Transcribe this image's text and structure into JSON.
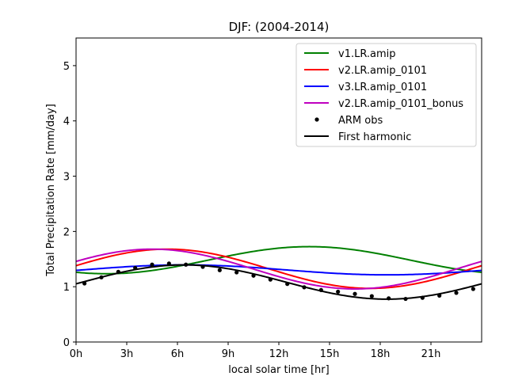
{
  "chart_data": {
    "type": "line",
    "title": "DJF: (2004-2014)",
    "xlabel": "local solar time [hr]",
    "ylabel": "Total Precipitation Rate [mm/day]",
    "xlim": [
      0,
      24
    ],
    "ylim": [
      0,
      5.5
    ],
    "xticks": [
      0,
      3,
      6,
      9,
      12,
      15,
      18,
      21
    ],
    "xtick_labels": [
      "0h",
      "3h",
      "6h",
      "9h",
      "12h",
      "15h",
      "18h",
      "21h"
    ],
    "yticks": [
      0,
      1,
      2,
      3,
      4,
      5
    ],
    "ytick_labels": [
      "0",
      "1",
      "2",
      "3",
      "4",
      "5"
    ],
    "grid": false,
    "legend_position": "top-right",
    "series": [
      {
        "name": "v1.LR.amip",
        "kind": "harmonic",
        "color": "#008000",
        "mean": 1.48,
        "amplitude": 0.245,
        "peak_hour": 13.8
      },
      {
        "name": "v2.LR.amip_0101",
        "kind": "harmonic",
        "color": "#ff0000",
        "mean": 1.325,
        "amplitude": 0.355,
        "peak_hour": 5.4
      },
      {
        "name": "v3.LR.amip_0101",
        "kind": "harmonic",
        "color": "#0000ff",
        "mean": 1.305,
        "amplitude": 0.09,
        "peak_hour": 6.4
      },
      {
        "name": "v2.LR.amip_0101_bonus",
        "kind": "harmonic",
        "color": "#bf00bf",
        "mean": 1.32,
        "amplitude": 0.36,
        "peak_hour": 4.5
      },
      {
        "name": "ARM obs",
        "kind": "points",
        "color": "#000000",
        "x": [
          0.5,
          1.5,
          2.5,
          3.5,
          4.5,
          5.5,
          6.5,
          7.5,
          8.5,
          9.5,
          10.5,
          11.5,
          12.5,
          13.5,
          14.5,
          15.5,
          16.5,
          17.5,
          18.5,
          19.5,
          20.5,
          21.5,
          22.5,
          23.5
        ],
        "y": [
          1.06,
          1.17,
          1.27,
          1.34,
          1.4,
          1.42,
          1.4,
          1.36,
          1.3,
          1.26,
          1.2,
          1.13,
          1.05,
          0.99,
          0.94,
          0.91,
          0.87,
          0.83,
          0.79,
          0.78,
          0.8,
          0.84,
          0.89,
          0.96
        ]
      },
      {
        "name": "First harmonic",
        "kind": "harmonic",
        "color": "#000000",
        "mean": 1.085,
        "amplitude": 0.31,
        "peak_hour": 6.4
      }
    ]
  }
}
